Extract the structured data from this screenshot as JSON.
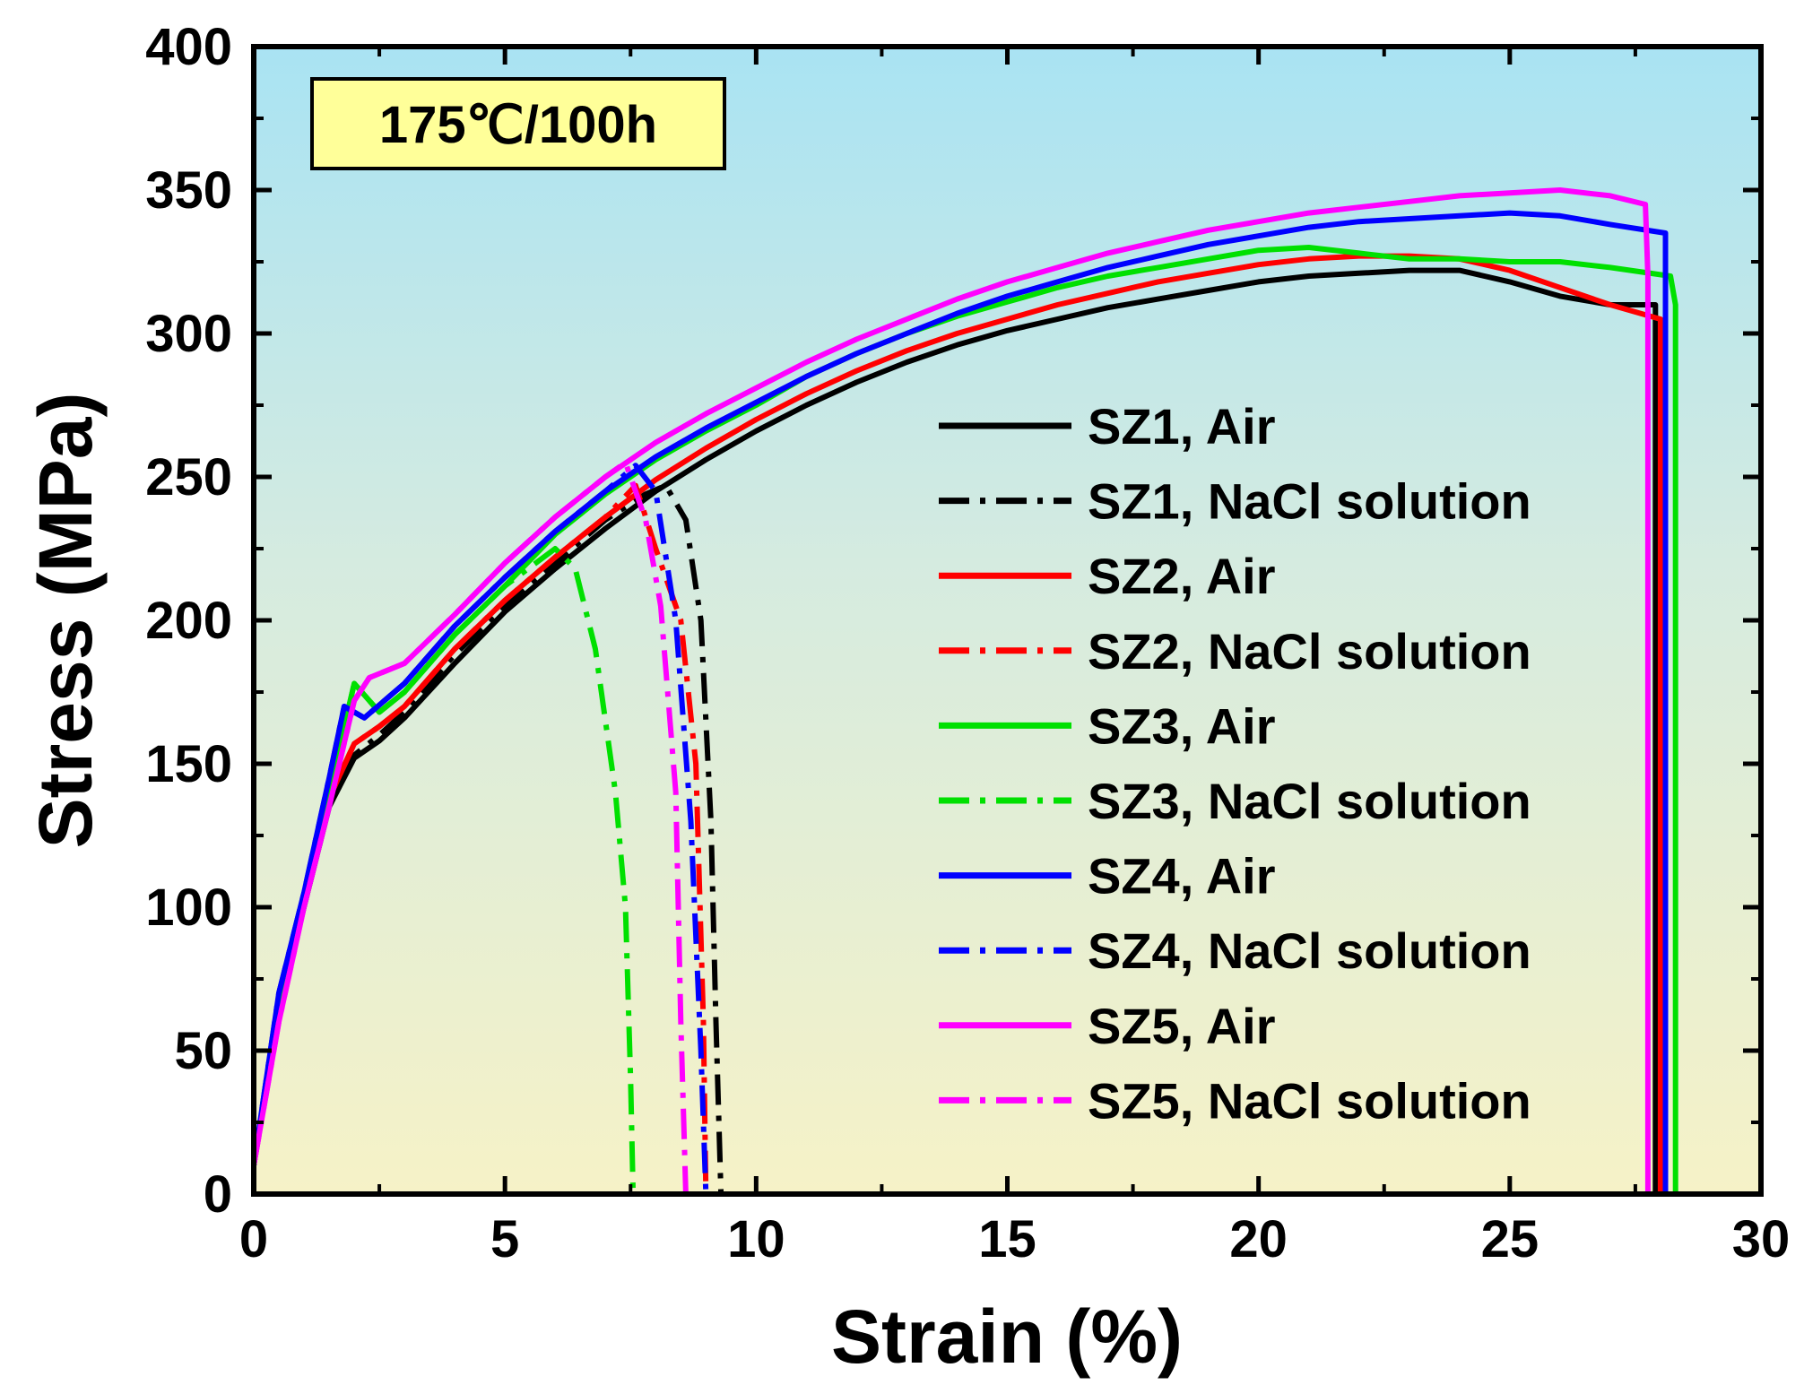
{
  "chart_data": {
    "type": "line",
    "title": "",
    "xlabel": "Strain (%)",
    "ylabel": "Stress (MPa)",
    "xlim": [
      0,
      30
    ],
    "ylim": [
      0,
      400
    ],
    "xticks": [
      "0",
      "5",
      "10",
      "15",
      "20",
      "25",
      "30"
    ],
    "yticks": [
      "0",
      "50",
      "100",
      "150",
      "200",
      "250",
      "300",
      "350",
      "400"
    ],
    "annotation": "175℃/100h",
    "background": {
      "top": "#a9e3f3",
      "bottom": "#f6f2c7"
    },
    "legend_position": "right",
    "series": [
      {
        "name": "SZ1, Air",
        "color": "#000000",
        "style": "solid",
        "x": [
          0,
          0.5,
          1.0,
          1.5,
          2.0,
          2.5,
          3,
          4,
          5,
          6,
          7,
          8,
          9,
          10,
          11,
          12,
          13,
          14,
          15,
          16,
          17,
          18,
          19,
          20,
          21,
          22,
          23,
          24,
          25,
          26,
          27,
          27.9,
          27.9
        ],
        "y": [
          10,
          65,
          100,
          135,
          152,
          158,
          166,
          185,
          203,
          218,
          232,
          245,
          256,
          266,
          275,
          283,
          290,
          296,
          301,
          305,
          309,
          312,
          315,
          318,
          320,
          321,
          322,
          322,
          318,
          313,
          310,
          310,
          0
        ]
      },
      {
        "name": "SZ1, NaCl solution",
        "color": "#000000",
        "style": "dashdot",
        "x": [
          0,
          0.5,
          1.0,
          1.5,
          2.0,
          2.5,
          3,
          4,
          5,
          6,
          7,
          7.8,
          8.2,
          8.6,
          8.9,
          9.1,
          9.2,
          9.3
        ],
        "y": [
          10,
          65,
          100,
          135,
          153,
          160,
          168,
          188,
          205,
          220,
          235,
          244,
          247,
          235,
          200,
          130,
          60,
          0
        ]
      },
      {
        "name": "SZ2, Air",
        "color": "#ff0000",
        "style": "solid",
        "x": [
          0,
          0.5,
          1.0,
          1.5,
          2.0,
          2.5,
          3,
          4,
          5,
          6,
          7,
          8,
          9,
          10,
          11,
          12,
          13,
          14,
          15,
          16,
          17,
          18,
          19,
          20,
          21,
          22,
          23,
          24,
          25,
          26,
          27,
          28.0,
          28.0
        ],
        "y": [
          10,
          67,
          103,
          138,
          157,
          163,
          170,
          190,
          207,
          222,
          236,
          249,
          260,
          270,
          279,
          287,
          294,
          300,
          305,
          310,
          314,
          318,
          321,
          324,
          326,
          327,
          327,
          326,
          322,
          316,
          310,
          305,
          0
        ]
      },
      {
        "name": "SZ2, NaCl solution",
        "color": "#ff0000",
        "style": "dashdot",
        "x": [
          0,
          0.5,
          1.0,
          1.5,
          2.0,
          2.5,
          3,
          4,
          5,
          6,
          7,
          7.6,
          8.0,
          8.5,
          8.8,
          8.95,
          9.0
        ],
        "y": [
          10,
          67,
          103,
          138,
          157,
          163,
          170,
          190,
          207,
          222,
          236,
          247,
          225,
          200,
          150,
          60,
          0
        ]
      },
      {
        "name": "SZ3, Air",
        "color": "#00e000",
        "style": "solid",
        "x": [
          0,
          0.5,
          1.0,
          1.5,
          2.0,
          2.5,
          3,
          4,
          5,
          6,
          7,
          8,
          9,
          10,
          11,
          12,
          13,
          14,
          15,
          16,
          17,
          18,
          19,
          20,
          21,
          22,
          23,
          24,
          25,
          26,
          27,
          28.2,
          28.3,
          28.3
        ],
        "y": [
          10,
          62,
          102,
          140,
          178,
          168,
          175,
          195,
          212,
          230,
          244,
          256,
          266,
          275,
          285,
          293,
          300,
          306,
          311,
          316,
          320,
          323,
          326,
          329,
          330,
          328,
          326,
          326,
          325,
          325,
          323,
          320,
          310,
          0
        ]
      },
      {
        "name": "SZ3, NaCl solution",
        "color": "#00e000",
        "style": "dashdot",
        "x": [
          0,
          0.5,
          1.0,
          1.5,
          2.0,
          2.5,
          3,
          4,
          5,
          6,
          6.4,
          6.8,
          7.2,
          7.4,
          7.5,
          7.55
        ],
        "y": [
          10,
          62,
          102,
          140,
          178,
          168,
          175,
          195,
          212,
          225,
          218,
          190,
          140,
          100,
          40,
          0
        ]
      },
      {
        "name": "SZ4, Air",
        "color": "#0000ff",
        "style": "solid",
        "x": [
          0,
          0.5,
          1.0,
          1.5,
          1.8,
          2.2,
          3,
          4,
          5,
          6,
          7,
          8,
          9,
          10,
          11,
          12,
          13,
          14,
          15,
          16,
          17,
          18,
          19,
          20,
          21,
          22,
          23,
          24,
          25,
          26,
          27,
          28.1,
          28.1
        ],
        "y": [
          10,
          70,
          105,
          145,
          170,
          166,
          178,
          198,
          215,
          231,
          245,
          257,
          267,
          276,
          285,
          293,
          300,
          307,
          313,
          318,
          323,
          327,
          331,
          334,
          337,
          339,
          340,
          341,
          342,
          341,
          338,
          335,
          0
        ]
      },
      {
        "name": "SZ4, NaCl solution",
        "color": "#0000ff",
        "style": "dashdot",
        "x": [
          0,
          0.5,
          1.0,
          1.5,
          1.8,
          2.2,
          3,
          4,
          5,
          6,
          7,
          7.6,
          8.0,
          8.4,
          8.7,
          8.9,
          9.0
        ],
        "y": [
          10,
          70,
          105,
          145,
          170,
          166,
          178,
          198,
          215,
          231,
          245,
          254,
          245,
          200,
          130,
          50,
          0
        ]
      },
      {
        "name": "SZ5, Air",
        "color": "#ff00ff",
        "style": "solid",
        "x": [
          0,
          0.5,
          1.0,
          1.5,
          2.0,
          2.3,
          3,
          4,
          5,
          6,
          7,
          8,
          9,
          10,
          11,
          12,
          13,
          14,
          15,
          16,
          17,
          18,
          19,
          20,
          21,
          22,
          23,
          24,
          25,
          26,
          27,
          27.7,
          27.75,
          27.75
        ],
        "y": [
          10,
          60,
          100,
          135,
          172,
          180,
          185,
          202,
          220,
          236,
          250,
          262,
          272,
          281,
          290,
          298,
          305,
          312,
          318,
          323,
          328,
          332,
          336,
          339,
          342,
          344,
          346,
          348,
          349,
          350,
          348,
          345,
          320,
          0
        ]
      },
      {
        "name": "SZ5, NaCl solution",
        "color": "#ff00ff",
        "style": "dashdot",
        "x": [
          0,
          0.5,
          1.0,
          1.5,
          2.0,
          2.3,
          3,
          4,
          5,
          6,
          7,
          7.4,
          7.8,
          8.1,
          8.4,
          8.5,
          8.6
        ],
        "y": [
          10,
          60,
          100,
          135,
          172,
          180,
          185,
          202,
          220,
          236,
          250,
          255,
          235,
          205,
          140,
          60,
          0
        ]
      }
    ]
  }
}
